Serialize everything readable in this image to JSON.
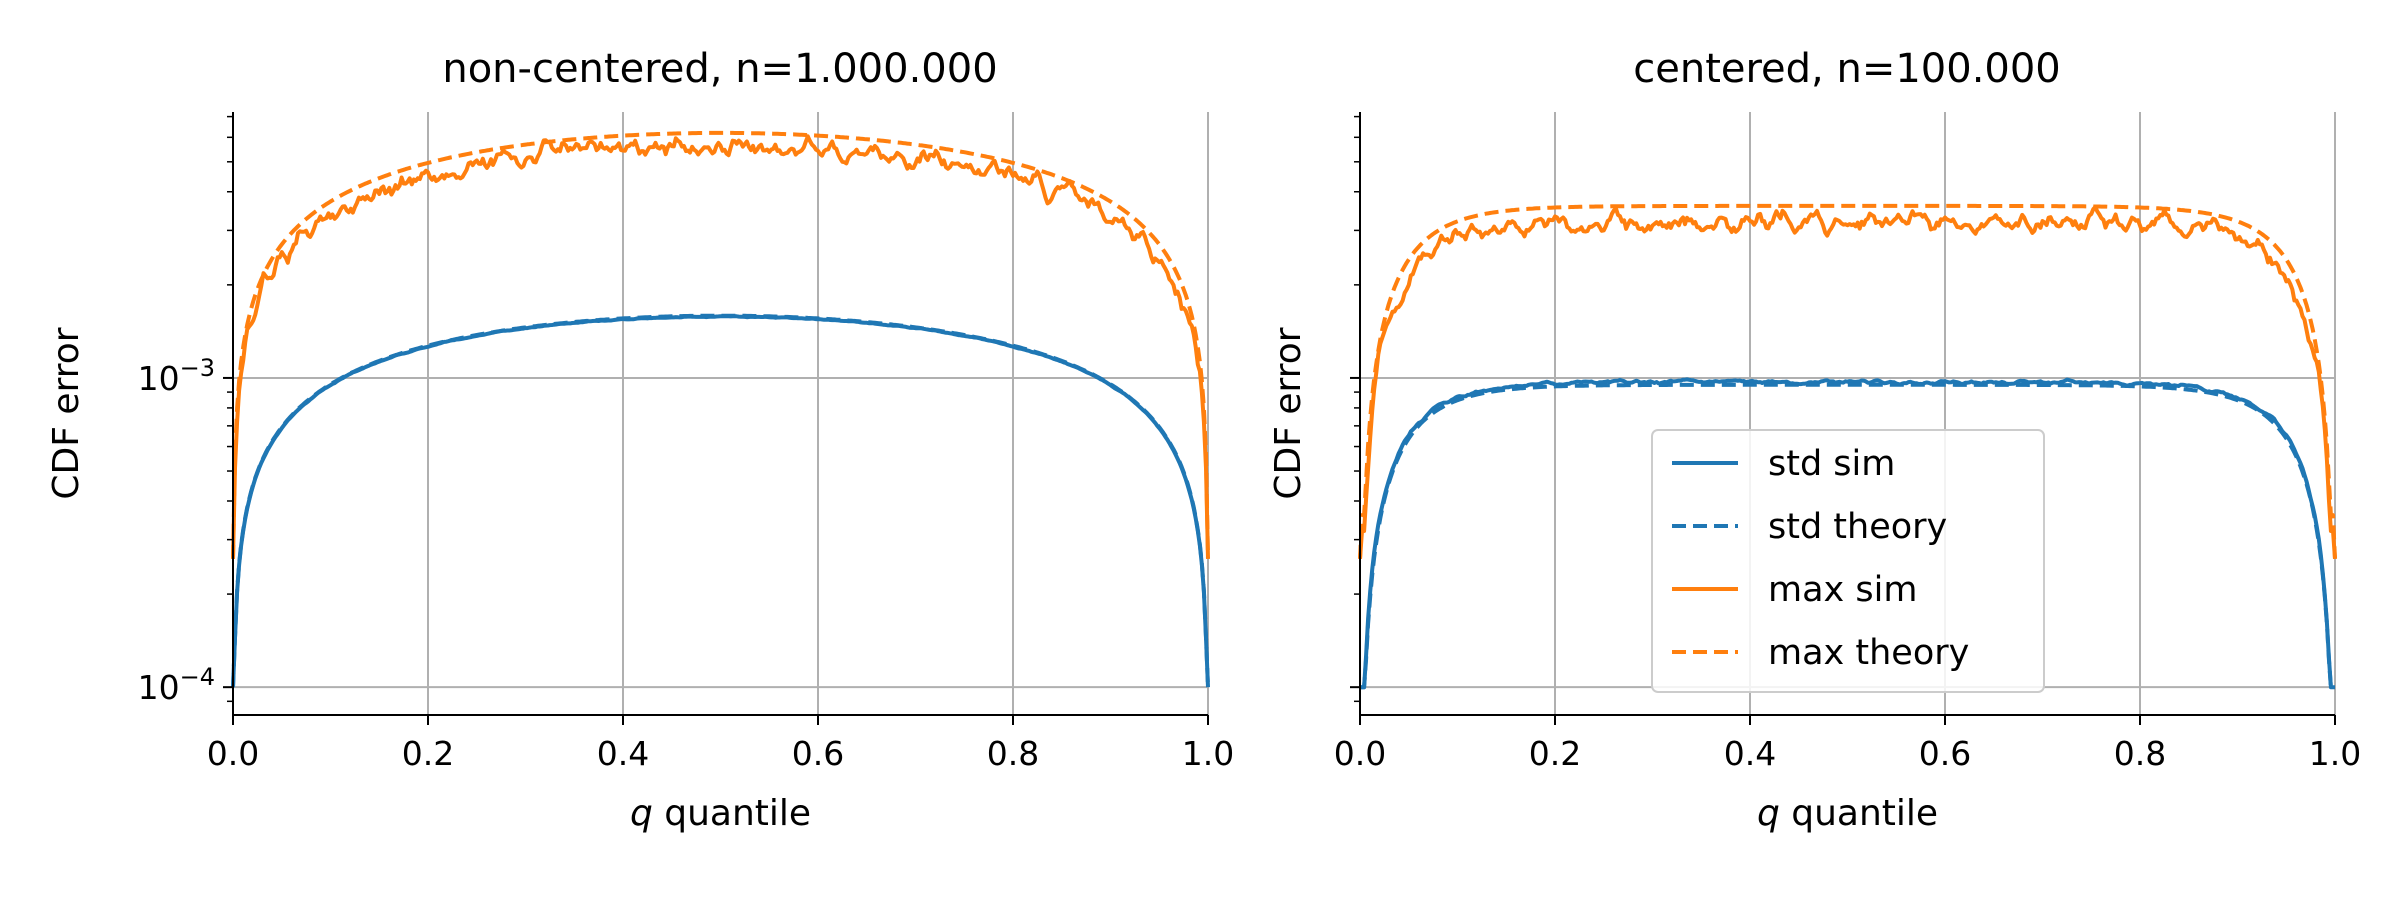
{
  "colors": {
    "std": "#1f77b4",
    "max": "#ff7f0e",
    "grid": "#b0b0b0",
    "axis": "#000000"
  },
  "chart_data": [
    {
      "type": "line",
      "title": "non-centered, n=1.000.000",
      "xlabel_italic": "q",
      "xlabel_rest": " quantile",
      "ylabel": "CDF error",
      "xlim": [
        0.0,
        1.0
      ],
      "ylim_log10": [
        -4.09,
        -2.14
      ],
      "yscale": "log",
      "grid": true,
      "x_ticks": [
        "0.0",
        "0.2",
        "0.4",
        "0.6",
        "0.8",
        "1.0"
      ],
      "y_ticks": [
        {
          "base": "10",
          "exp": "−4",
          "value": 0.0001
        },
        {
          "base": "10",
          "exp": "−3",
          "value": 0.001
        }
      ],
      "series": [
        {
          "name": "std sim",
          "style": "solid",
          "color": "std",
          "kind": "std",
          "peak": 0.00158,
          "noise": 0.003
        },
        {
          "name": "std theory",
          "style": "dashed",
          "color": "std",
          "kind": "std",
          "peak": 0.00159,
          "noise": 0
        },
        {
          "name": "max sim",
          "style": "solid",
          "color": "max",
          "kind": "max",
          "peak": 0.0056,
          "noise": 0.07
        },
        {
          "name": "max theory",
          "style": "dashed",
          "color": "max",
          "kind": "max",
          "peak": 0.0062,
          "noise": 0
        }
      ],
      "legend": null
    },
    {
      "type": "line",
      "title": "centered, n=100.000",
      "xlabel_italic": "q",
      "xlabel_rest": " quantile",
      "ylabel": "CDF error",
      "xlim": [
        0.0,
        1.0
      ],
      "ylim_log10": [
        -4.09,
        -2.14
      ],
      "yscale": "log",
      "grid": true,
      "x_ticks": [
        "0.0",
        "0.2",
        "0.4",
        "0.6",
        "0.8",
        "1.0"
      ],
      "y_ticks": [],
      "series": [
        {
          "name": "std sim",
          "style": "solid",
          "color": "std",
          "kind": "plateau_std",
          "peak": 0.00097,
          "noise": 0.012
        },
        {
          "name": "std theory",
          "style": "dashed",
          "color": "std",
          "kind": "plateau_std",
          "peak": 0.00095,
          "noise": 0
        },
        {
          "name": "max sim",
          "style": "solid",
          "color": "max",
          "kind": "plateau_max",
          "peak": 0.0032,
          "noise": 0.07
        },
        {
          "name": "max theory",
          "style": "dashed",
          "color": "max",
          "kind": "plateau_max",
          "peak": 0.0036,
          "noise": 0
        }
      ],
      "legend": "lower center"
    }
  ]
}
